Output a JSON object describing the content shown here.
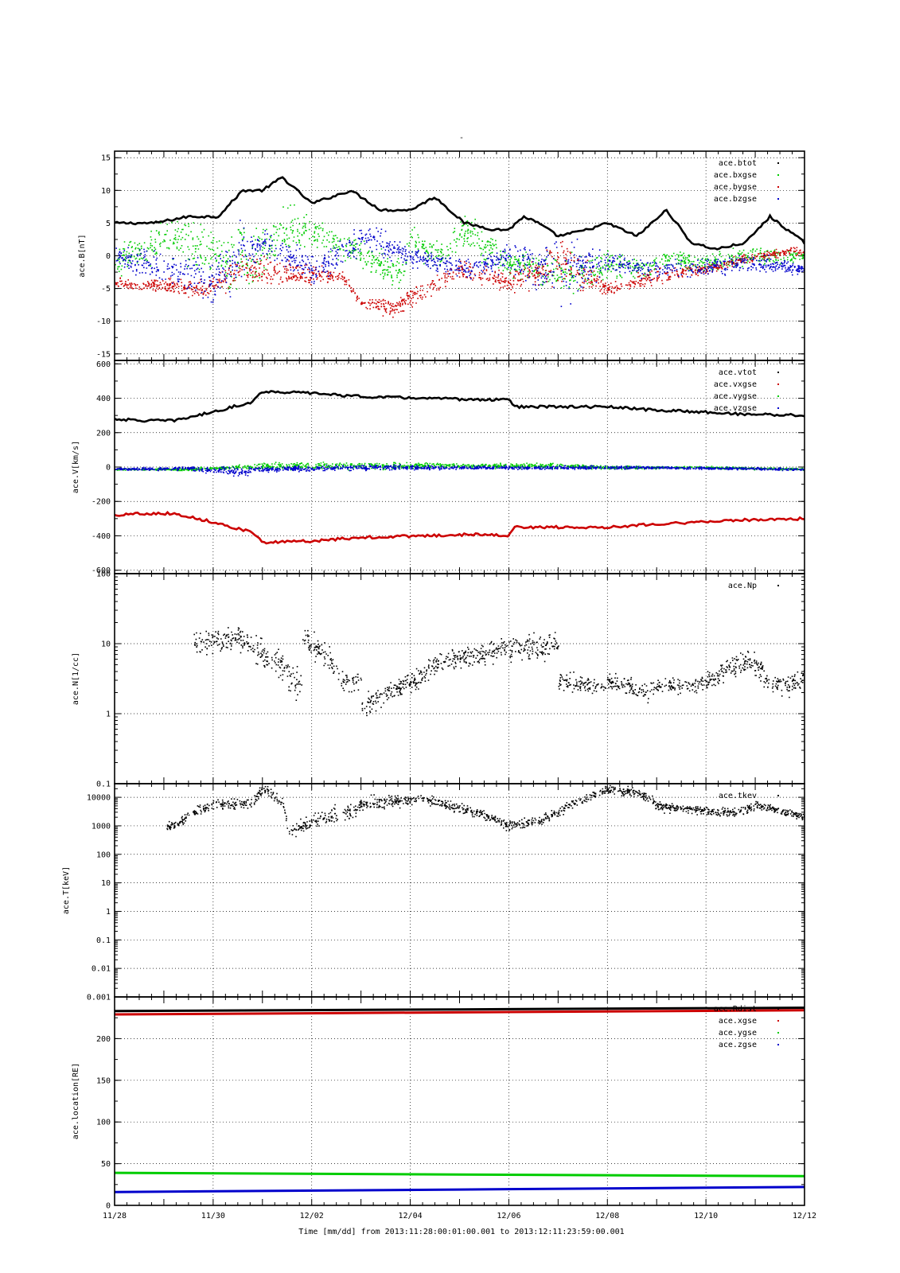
{
  "figure": {
    "title": "-",
    "x_axis_label": "Time [mm/dd]  from 2013:11:28:00:01:00.001  to  2013:12:11:23:59:00.001",
    "x_ticks": [
      "11/28",
      "11/30",
      "12/02",
      "12/04",
      "12/06",
      "12/08",
      "12/10",
      "12/12"
    ]
  },
  "chart_data": [
    {
      "type": "scatter",
      "ylabel": "ace.B[nT]",
      "ylim": [
        -16,
        16
      ],
      "yscale": "linear",
      "grid": true,
      "legend_position": "top-right",
      "x_unit": "days since 11/28",
      "yticks": [
        -15,
        -10,
        -5,
        0,
        5,
        10,
        15
      ],
      "ytick_labels": [
        "-15",
        "-10",
        "-5",
        "0",
        "5",
        "10",
        "15"
      ],
      "series": [
        {
          "name": "ace.btot",
          "color": "#000000",
          "style": "line",
          "x": [
            0,
            0.8,
            1.5,
            2.1,
            2.6,
            3,
            3.4,
            4,
            4.8,
            5.4,
            6,
            6.5,
            7.1,
            7.7,
            8,
            8.3,
            8.6,
            9,
            9.6,
            10,
            10.6,
            11.2,
            11.7,
            12.2,
            12.8,
            13.3,
            14
          ],
          "y": [
            5,
            5,
            6,
            6,
            10,
            10,
            12,
            8,
            10,
            7,
            7,
            9,
            5,
            4,
            4,
            6,
            5,
            3,
            4,
            5,
            3,
            7,
            2,
            1,
            2,
            6,
            2
          ]
        },
        {
          "name": "ace.bxgse",
          "color": "#00cc00",
          "style": "noise",
          "x": [
            0,
            1.2,
            2,
            2.9,
            3.5,
            4.3,
            5.8,
            6,
            6.7,
            7,
            8,
            9.2,
            10,
            10.9,
            11,
            12,
            13,
            14
          ],
          "y": [
            -1,
            3,
            0,
            0,
            4,
            3,
            -3,
            2,
            0,
            4,
            -1,
            -3,
            -1,
            -2,
            0,
            -1,
            0,
            0
          ],
          "amp": [
            3,
            4,
            6,
            7,
            5,
            3,
            3,
            3,
            3,
            4,
            3,
            4,
            3,
            2,
            2,
            2,
            2,
            1
          ]
        },
        {
          "name": "ace.bygse",
          "color": "#cc0000",
          "style": "noise",
          "x": [
            0,
            1.8,
            2.4,
            2.6,
            4.1,
            4.6,
            5,
            5.7,
            7,
            8,
            9.1,
            10,
            11,
            12,
            13,
            14
          ],
          "y": [
            -4,
            -5,
            -3,
            -2,
            -3,
            -3,
            -7,
            -8,
            -2,
            -4,
            -1,
            -5,
            -3,
            -2,
            0,
            1
          ],
          "amp": [
            1,
            2,
            3,
            3,
            2,
            1,
            1,
            2,
            2,
            2,
            5,
            1,
            2,
            1,
            1,
            1
          ]
        },
        {
          "name": "ace.bzgse",
          "color": "#0000cc",
          "style": "noise",
          "x": [
            0,
            1.2,
            2,
            2.5,
            3,
            4,
            5.1,
            6,
            7.2,
            8,
            9,
            10,
            11,
            13,
            14
          ],
          "y": [
            0,
            -2,
            -4,
            0,
            2,
            -2,
            3,
            0,
            -2,
            0,
            -2,
            -1,
            -2,
            -1,
            -2
          ],
          "amp": [
            2,
            4,
            5,
            6,
            3,
            3,
            3,
            2,
            2,
            3,
            8,
            2,
            2,
            2,
            1
          ]
        }
      ]
    },
    {
      "type": "scatter",
      "ylabel": "ace.V[km/s]",
      "ylim": [
        -620,
        620
      ],
      "yscale": "linear",
      "grid": true,
      "legend_position": "top-right",
      "x_unit": "days since 11/28",
      "yticks": [
        -600,
        -400,
        -200,
        0,
        200,
        400,
        600
      ],
      "ytick_labels": [
        "-600",
        "-400",
        "-200",
        "0",
        "200",
        "400",
        "600"
      ],
      "series": [
        {
          "name": "ace.vtot",
          "color": "#000000",
          "style": "line",
          "x": [
            0,
            0.5,
            1.2,
            2,
            2.8,
            3,
            4,
            5,
            7.6,
            8,
            8.1,
            8.8,
            10,
            11,
            12,
            12.5,
            14
          ],
          "y": [
            280,
            270,
            270,
            320,
            380,
            440,
            430,
            410,
            390,
            400,
            350,
            350,
            350,
            330,
            320,
            310,
            300
          ]
        },
        {
          "name": "ace.vxgse",
          "color": "#cc0000",
          "style": "line",
          "x": [
            0,
            0.5,
            1.2,
            2,
            2.8,
            3,
            4,
            5,
            7.6,
            8,
            8.1,
            8.8,
            10,
            11,
            12,
            12.5,
            14
          ],
          "y": [
            -280,
            -270,
            -270,
            -320,
            -380,
            -440,
            -430,
            -410,
            -390,
            -400,
            -350,
            -350,
            -350,
            -330,
            -320,
            -310,
            -300
          ]
        },
        {
          "name": "ace.vygse",
          "color": "#00cc00",
          "style": "noise",
          "x": [
            0,
            1.5,
            3,
            5,
            7,
            9,
            10,
            11,
            12,
            14
          ],
          "y": [
            -10,
            -10,
            10,
            10,
            10,
            10,
            0,
            0,
            0,
            -10
          ],
          "amp": [
            10,
            10,
            25,
            30,
            20,
            20,
            15,
            10,
            10,
            10
          ]
        },
        {
          "name": "ace.vzgse",
          "color": "#0000cc",
          "style": "noise",
          "x": [
            0,
            1.5,
            2.5,
            3,
            5,
            7,
            9,
            11,
            14
          ],
          "y": [
            -10,
            -5,
            -25,
            -10,
            0,
            0,
            0,
            0,
            -10
          ],
          "amp": [
            10,
            15,
            40,
            20,
            20,
            15,
            15,
            10,
            10
          ]
        }
      ]
    },
    {
      "type": "scatter",
      "ylabel": "ace.N[1/cc]",
      "ylim": [
        0.1,
        100
      ],
      "yscale": "log",
      "grid": true,
      "legend_position": "top-right",
      "x_unit": "days since 11/28",
      "yticks": [
        0.1,
        1,
        10,
        100
      ],
      "ytick_labels": [
        "0.1",
        "1",
        "10",
        "100"
      ],
      "series": [
        {
          "name": "ace.Np",
          "color": "#000000",
          "style": "noise",
          "x": [
            1.6,
            2.5,
            3,
            3.8,
            3.8,
            4.6,
            5,
            5,
            5.6,
            6.1,
            6.4,
            7.7,
            9,
            8.7,
            9,
            9.7,
            10,
            10.8,
            11,
            11.6,
            12,
            12.9,
            13.2,
            13.7,
            14
          ],
          "y": [
            10,
            12,
            7,
            2,
            12,
            3,
            3,
            1.1,
            2.2,
            3,
            4.5,
            8,
            10,
            4,
            3,
            2.5,
            2.8,
            2,
            2.6,
            2.5,
            2.8,
            6,
            3,
            2.5,
            3.2
          ],
          "amp": [
            0.12,
            0.12,
            0.15,
            0.15,
            0.12,
            0.12,
            0.12,
            0.12,
            0.1,
            0.1,
            0.1,
            0.12,
            0.12,
            0.12,
            0.1,
            0.08,
            0.08,
            0.1,
            0.08,
            0.08,
            0.08,
            0.12,
            0.1,
            0.1,
            0.1
          ]
        }
      ]
    },
    {
      "type": "scatter",
      "ylabel": "ace.T[keV]",
      "ylim": [
        0.001,
        30000
      ],
      "yscale": "log",
      "grid": true,
      "legend_position": "top-right",
      "x_unit": "days since 11/28",
      "yticks": [
        0.001,
        0.01,
        0.1,
        1,
        10,
        100,
        1000,
        10000
      ],
      "ytick_labels": [
        "0.001",
        "0.01",
        "0.1",
        "1",
        "10",
        "100",
        "1000",
        "10000"
      ],
      "series": [
        {
          "name": "ace.tkev",
          "color": "#000000",
          "style": "noise",
          "x": [
            1,
            1.3,
            1.6,
            2,
            2.8,
            3,
            3.4,
            3.5,
            4,
            4.4,
            4.9,
            5,
            5.6,
            6.2,
            6.6,
            7.6,
            8,
            8.6,
            9,
            9.5,
            10,
            10.6,
            11,
            11.6,
            12,
            12.6,
            13,
            14
          ],
          "y": [
            1000,
            1200,
            3000,
            6000,
            6000,
            20000,
            6000,
            500,
            1500,
            2500,
            3500,
            6000,
            7000,
            9000,
            6000,
            2000,
            1000,
            1500,
            3000,
            8000,
            20000,
            15000,
            5000,
            4000,
            3500,
            3000,
            5000,
            2000
          ],
          "amp": [
            0.12,
            0.12,
            0.12,
            0.12,
            0.12,
            0.12,
            0.15,
            0.15,
            0.18,
            0.2,
            0.2,
            0.2,
            0.15,
            0.12,
            0.12,
            0.12,
            0.12,
            0.12,
            0.1,
            0.12,
            0.12,
            0.12,
            0.12,
            0.1,
            0.1,
            0.1,
            0.1,
            0.1
          ]
        }
      ]
    },
    {
      "type": "line",
      "ylabel": "ace.location[RE]",
      "ylim": [
        0,
        250
      ],
      "yscale": "linear",
      "grid": true,
      "legend_position": "top-right",
      "x_unit": "days since 11/28",
      "yticks": [
        0,
        50,
        100,
        150,
        200
      ],
      "ytick_labels": [
        "0",
        "50",
        "100",
        "150",
        "200"
      ],
      "series": [
        {
          "name": "ace.Rdist",
          "color": "#000000",
          "style": "line",
          "x": [
            0,
            14
          ],
          "y": [
            233,
            237
          ]
        },
        {
          "name": "ace.xgse",
          "color": "#cc0000",
          "style": "line",
          "x": [
            0,
            14
          ],
          "y": [
            229,
            234
          ]
        },
        {
          "name": "ace.ygse",
          "color": "#00cc00",
          "style": "line",
          "x": [
            0,
            14
          ],
          "y": [
            39,
            35
          ]
        },
        {
          "name": "ace.zgse",
          "color": "#0000cc",
          "style": "line",
          "x": [
            0,
            14
          ],
          "y": [
            16,
            22
          ]
        }
      ]
    }
  ]
}
